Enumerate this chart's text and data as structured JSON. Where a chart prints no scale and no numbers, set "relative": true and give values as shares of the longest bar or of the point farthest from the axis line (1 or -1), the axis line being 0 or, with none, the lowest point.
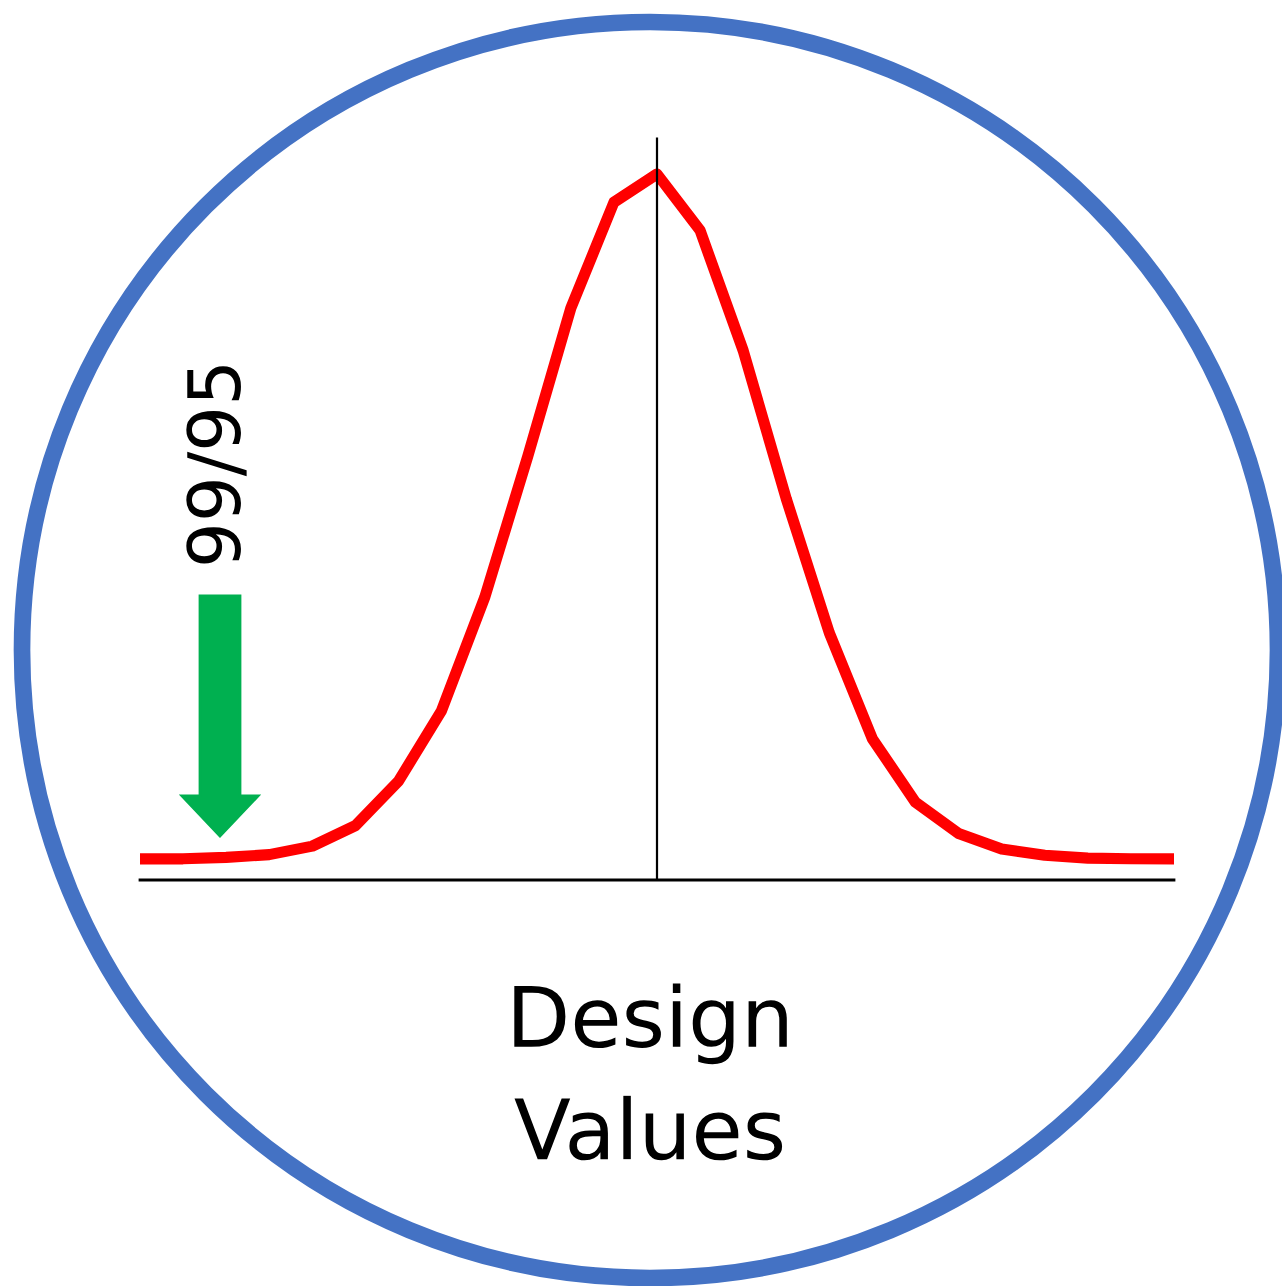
{
  "chart_data": {
    "type": "line",
    "relative": true,
    "xlabel": "Design\nValues",
    "categories": [
      null,
      null,
      null,
      null,
      null,
      null,
      null,
      null,
      null,
      null,
      null,
      null,
      null,
      null,
      null,
      null,
      null,
      null,
      null,
      null,
      null,
      null,
      null,
      null,
      null
    ],
    "series": [
      {
        "color": "#ff0000",
        "values": [
          0.03,
          0.03,
          0.032,
          0.036,
          0.048,
          0.077,
          0.14,
          0.24,
          0.4,
          0.6,
          0.81,
          0.96,
          1.0,
          0.92,
          0.75,
          0.54,
          0.35,
          0.2,
          0.11,
          0.066,
          0.044,
          0.035,
          0.031,
          0.03,
          0.03
        ]
      }
    ],
    "annotations": [
      "99/95"
    ],
    "grid": false,
    "marker": "none",
    "line_style": "solid"
  }
}
